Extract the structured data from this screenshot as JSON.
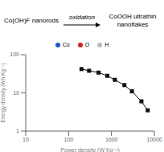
{
  "chart_data": {
    "type": "line",
    "xlabel": "Power density (W Kg⁻¹)",
    "ylabel": "Energy density (Wh Kg⁻¹)",
    "x": [
      200,
      300,
      500,
      800,
      1200,
      2000,
      3000,
      5000,
      7000
    ],
    "values": [
      42,
      38,
      34,
      28,
      22,
      16,
      11,
      6,
      3.5
    ],
    "color": "#111111",
    "marker": "square",
    "log": true,
    "xlim": [
      10,
      10000
    ],
    "ylim": [
      1,
      100
    ],
    "xticks": [
      10,
      100,
      1000,
      10000
    ],
    "yticks": [
      1,
      10,
      100
    ],
    "grid": false,
    "annotations": [
      {
        "text": "Co(OH)F nanorods"
      },
      {
        "text": "oxidation"
      },
      {
        "text": "CoOOH ultrathin nanoflakes"
      },
      {
        "text": "Co",
        "color": "#2255cc"
      },
      {
        "text": "O",
        "color": "#cc2222"
      },
      {
        "text": "H",
        "color": "#bbbbbb"
      }
    ]
  }
}
